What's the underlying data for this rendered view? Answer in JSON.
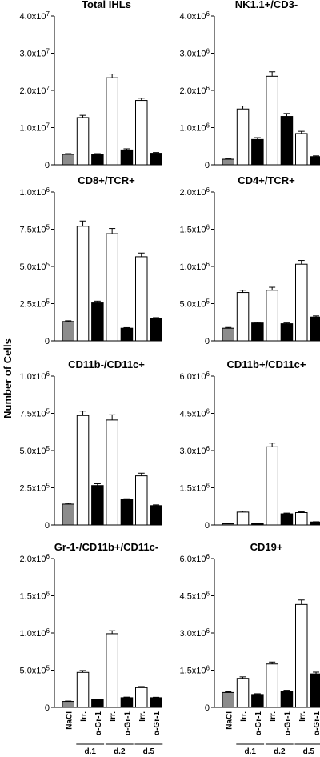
{
  "figure": {
    "ylabel": "Number of Cells",
    "condition_labels": [
      "NaCl",
      "Irr.",
      "α-Gr-1",
      "Irr.",
      "α-Gr-1",
      "Irr.",
      "α-Gr-1"
    ],
    "group_labels": [
      "d.1",
      "d.2",
      "d.5"
    ],
    "colors": {
      "NaCl": "#8c8c8c",
      "Irr": "#ffffff",
      "aGr1": "#000000"
    }
  },
  "chart_data": [
    {
      "type": "bar",
      "title": "Total IHLs",
      "categories": [
        "NaCl",
        "Irr. d.1",
        "α-Gr-1 d.1",
        "Irr. d.2",
        "α-Gr-1 d.2",
        "Irr. d.5",
        "α-Gr-1 d.5"
      ],
      "values": [
        2800000.0,
        12700000.0,
        2800000.0,
        23400000.0,
        4000000.0,
        17300000.0,
        3100000.0
      ],
      "errors": [
        200000.0,
        600000.0,
        200000.0,
        1000000.0,
        300000.0,
        600000.0,
        200000.0
      ],
      "ylim": [
        0,
        40000000.0
      ],
      "tick_labels": [
        "0",
        "1.0x10^7",
        "2.0x10^7",
        "3.0x10^7",
        "4.0x10^7"
      ]
    },
    {
      "type": "bar",
      "title": "NK1.1+/CD3-",
      "categories": [
        "NaCl",
        "Irr. d.1",
        "α-Gr-1 d.1",
        "Irr. d.2",
        "α-Gr-1 d.2",
        "Irr. d.5",
        "α-Gr-1 d.5"
      ],
      "values": [
        150000.0,
        1500000.0,
        680000.0,
        2380000.0,
        1300000.0,
        840000.0,
        220000.0
      ],
      "errors": [
        10000.0,
        80000.0,
        50000.0,
        120000.0,
        80000.0,
        60000.0,
        20000.0
      ],
      "ylim": [
        0,
        4000000.0
      ],
      "tick_labels": [
        "0",
        "1.0x10^6",
        "2.0x10^6",
        "3.0x10^6",
        "4.0x10^6"
      ]
    },
    {
      "type": "bar",
      "title": "CD8+/TCR+",
      "categories": [
        "NaCl",
        "Irr. d.1",
        "α-Gr-1 d.1",
        "Irr. d.2",
        "α-Gr-1 d.2",
        "Irr. d.5",
        "α-Gr-1 d.5"
      ],
      "values": [
        130000.0,
        770000.0,
        255000.0,
        720000.0,
        85000.0,
        565000.0,
        150000.0
      ],
      "errors": [
        5000.0,
        35000.0,
        12000.0,
        35000.0,
        4000.0,
        25000.0,
        6000.0
      ],
      "ylim": [
        0,
        1000000.0
      ],
      "tick_labels": [
        "0",
        "2.5x10^5",
        "5.0x10^5",
        "7.5x10^5",
        "1.0x10^6"
      ]
    },
    {
      "type": "bar",
      "title": "CD4+/TCR+",
      "categories": [
        "NaCl",
        "Irr. d.1",
        "α-Gr-1 d.1",
        "Irr. d.2",
        "α-Gr-1 d.2",
        "Irr. d.5",
        "α-Gr-1 d.5"
      ],
      "values": [
        170000.0,
        650000.0,
        240000.0,
        680000.0,
        230000.0,
        1030000.0,
        320000.0
      ],
      "errors": [
        10000.0,
        30000.0,
        10000.0,
        40000.0,
        10000.0,
        50000.0,
        15000.0
      ],
      "ylim": [
        0,
        2000000.0
      ],
      "tick_labels": [
        "0",
        "5.0x10^5",
        "1.0x10^6",
        "1.5x10^6",
        "2.0x10^6"
      ]
    },
    {
      "type": "bar",
      "title": "CD11b-/CD11c+",
      "categories": [
        "NaCl",
        "Irr. d.1",
        "α-Gr-1 d.1",
        "Irr. d.2",
        "α-Gr-1 d.2",
        "Irr. d.5",
        "α-Gr-1 d.5"
      ],
      "values": [
        140000.0,
        735000.0,
        265000.0,
        705000.0,
        170000.0,
        330000.0,
        130000.0
      ],
      "errors": [
        6000.0,
        30000.0,
        12000.0,
        35000.0,
        6000.0,
        18000.0,
        5000.0
      ],
      "ylim": [
        0,
        1000000.0
      ],
      "tick_labels": [
        "0",
        "2.5x10^5",
        "5.0x10^5",
        "7.5x10^5",
        "1.0x10^6"
      ]
    },
    {
      "type": "bar",
      "title": "CD11b+/CD11c+",
      "categories": [
        "NaCl",
        "Irr. d.1",
        "α-Gr-1 d.1",
        "Irr. d.2",
        "α-Gr-1 d.2",
        "Irr. d.5",
        "α-Gr-1 d.5"
      ],
      "values": [
        50000.0,
        520000.0,
        70000.0,
        3150000.0,
        450000.0,
        500000.0,
        120000.0
      ],
      "errors": [
        5000.0,
        40000.0,
        8000.0,
        150000.0,
        30000.0,
        30000.0,
        10000.0
      ],
      "ylim": [
        0,
        6000000.0
      ],
      "tick_labels": [
        "0",
        "1.5x10^6",
        "3.0x10^6",
        "4.5x10^6",
        "6.0x10^6"
      ]
    },
    {
      "type": "bar",
      "title": "Gr-1-/CD11b+/CD11c-",
      "categories": [
        "NaCl",
        "Irr. d.1",
        "α-Gr-1 d.1",
        "Irr. d.2",
        "α-Gr-1 d.2",
        "Irr. d.5",
        "α-Gr-1 d.5"
      ],
      "values": [
        80000.0,
        470000.0,
        105000.0,
        990000.0,
        130000.0,
        265000.0,
        130000.0
      ],
      "errors": [
        5000.0,
        25000.0,
        8000.0,
        40000.0,
        8000.0,
        15000.0,
        6000.0
      ],
      "ylim": [
        0,
        2000000.0
      ],
      "tick_labels": [
        "0",
        "5.0x10^5",
        "1.0x10^6",
        "1.5x10^6",
        "2.0x10^6"
      ]
    },
    {
      "type": "bar",
      "title": "CD19+",
      "categories": [
        "NaCl",
        "Irr. d.1",
        "α-Gr-1 d.1",
        "Irr. d.2",
        "α-Gr-1 d.2",
        "Irr. d.5",
        "α-Gr-1 d.5"
      ],
      "values": [
        600000.0,
        1170000.0,
        520000.0,
        1750000.0,
        660000.0,
        4150000.0,
        1350000.0
      ],
      "errors": [
        30000.0,
        60000.0,
        30000.0,
        80000.0,
        30000.0,
        180000.0,
        70000.0
      ],
      "ylim": [
        0,
        6000000.0
      ],
      "tick_labels": [
        "0",
        "1.5x10^6",
        "3.0x10^6",
        "4.5x10^6",
        "6.0x10^6"
      ]
    }
  ]
}
